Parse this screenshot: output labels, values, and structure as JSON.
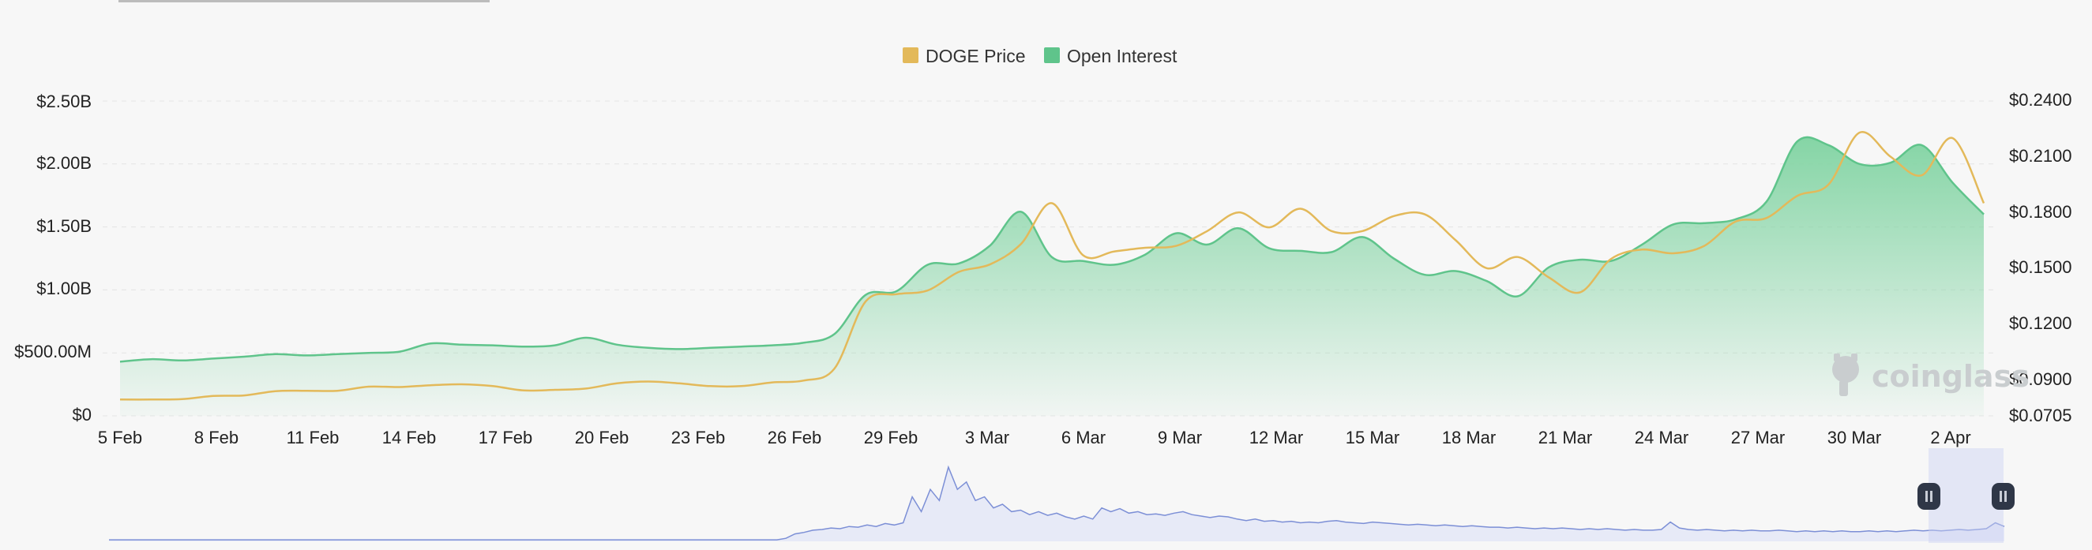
{
  "chart_data": {
    "type": "area",
    "title": "",
    "legend_position": "top-center",
    "grid": true,
    "colors": {
      "price": "#e3b95a",
      "open_interest": "#5fc48b",
      "open_interest_fill_top": "#7fd3a1",
      "navigator_line": "#7c8fd6",
      "navigator_fill": "#e7eaf7",
      "grid": "#e4e4e4"
    },
    "x_tick_labels": [
      "5 Feb",
      "8 Feb",
      "11 Feb",
      "14 Feb",
      "17 Feb",
      "20 Feb",
      "23 Feb",
      "26 Feb",
      "29 Feb",
      "3 Mar",
      "6 Mar",
      "9 Mar",
      "12 Mar",
      "15 Mar",
      "18 Mar",
      "21 Mar",
      "24 Mar",
      "27 Mar",
      "30 Mar",
      "2 Apr"
    ],
    "y_left": {
      "ticks": [
        0,
        500000000,
        1000000000,
        1500000000,
        2000000000,
        2500000000
      ],
      "tick_labels": [
        "$0",
        "$500.00M",
        "$1.00B",
        "$1.50B",
        "$2.00B",
        "$2.50B"
      ],
      "range": [
        0,
        2500000000
      ]
    },
    "y_right": {
      "ticks": [
        0.0705,
        0.09,
        0.12,
        0.15,
        0.18,
        0.21,
        0.24
      ],
      "tick_labels": [
        "$0.0705",
        "$0.0900",
        "$0.1200",
        "$0.1500",
        "$0.1800",
        "$0.2100",
        "$0.2400"
      ],
      "range": [
        0.0705,
        0.24
      ]
    },
    "x_day_range": [
      0,
      60
    ],
    "series": [
      {
        "name": "DOGE Price",
        "axis": "right",
        "x_days": [
          0,
          1,
          2,
          3,
          4,
          5,
          6,
          7,
          8,
          9,
          10,
          11,
          12,
          13,
          14,
          15,
          16,
          17,
          18,
          19,
          20,
          21,
          22,
          23,
          24,
          25,
          26,
          27,
          28,
          29,
          30,
          31,
          32,
          33,
          34,
          35,
          36,
          37,
          38,
          39,
          40,
          41,
          42,
          43,
          44,
          45,
          46,
          47,
          48,
          49,
          50,
          51,
          52,
          53,
          54,
          55,
          56,
          57,
          58,
          59,
          60
        ],
        "values": [
          0.0793,
          0.0793,
          0.0795,
          0.0812,
          0.0815,
          0.0838,
          0.084,
          0.084,
          0.0862,
          0.086,
          0.087,
          0.0875,
          0.0865,
          0.0842,
          0.0845,
          0.0852,
          0.088,
          0.089,
          0.088,
          0.0865,
          0.0865,
          0.0885,
          0.0895,
          0.096,
          0.132,
          0.136,
          0.138,
          0.148,
          0.152,
          0.163,
          0.185,
          0.157,
          0.159,
          0.161,
          0.162,
          0.17,
          0.18,
          0.172,
          0.182,
          0.17,
          0.17,
          0.178,
          0.179,
          0.165,
          0.15,
          0.156,
          0.145,
          0.137,
          0.155,
          0.16,
          0.158,
          0.162,
          0.175,
          0.177,
          0.189,
          0.195,
          0.223,
          0.21,
          0.2,
          0.22,
          0.185
        ]
      },
      {
        "name": "Open Interest",
        "axis": "left",
        "x_days": [
          0,
          1,
          2,
          3,
          4,
          5,
          6,
          7,
          8,
          9,
          10,
          11,
          12,
          13,
          14,
          15,
          16,
          17,
          18,
          19,
          20,
          21,
          22,
          23,
          24,
          25,
          26,
          27,
          28,
          29,
          30,
          31,
          32,
          33,
          34,
          35,
          36,
          37,
          38,
          39,
          40,
          41,
          42,
          43,
          44,
          45,
          46,
          47,
          48,
          49,
          50,
          51,
          52,
          53,
          54,
          55,
          56,
          57,
          58,
          59,
          60
        ],
        "values": [
          430000000,
          450000000,
          440000000,
          455000000,
          470000000,
          490000000,
          480000000,
          490000000,
          500000000,
          510000000,
          575000000,
          565000000,
          560000000,
          550000000,
          560000000,
          620000000,
          565000000,
          540000000,
          530000000,
          540000000,
          550000000,
          560000000,
          580000000,
          650000000,
          960000000,
          990000000,
          1200000000,
          1210000000,
          1350000000,
          1620000000,
          1260000000,
          1230000000,
          1200000000,
          1280000000,
          1450000000,
          1360000000,
          1490000000,
          1330000000,
          1310000000,
          1300000000,
          1420000000,
          1250000000,
          1120000000,
          1150000000,
          1070000000,
          950000000,
          1180000000,
          1240000000,
          1230000000,
          1360000000,
          1520000000,
          1530000000,
          1560000000,
          1700000000,
          2180000000,
          2150000000,
          2000000000,
          2010000000,
          2150000000,
          1850000000,
          1600000000
        ]
      }
    ],
    "navigator": {
      "values": [
        0.02,
        0.02,
        0.02,
        0.02,
        0.02,
        0.02,
        0.02,
        0.02,
        0.02,
        0.02,
        0.02,
        0.02,
        0.02,
        0.02,
        0.02,
        0.02,
        0.02,
        0.02,
        0.02,
        0.02,
        0.02,
        0.02,
        0.02,
        0.02,
        0.02,
        0.02,
        0.02,
        0.02,
        0.02,
        0.02,
        0.02,
        0.02,
        0.02,
        0.02,
        0.02,
        0.02,
        0.02,
        0.02,
        0.02,
        0.02,
        0.02,
        0.02,
        0.02,
        0.02,
        0.02,
        0.02,
        0.02,
        0.02,
        0.02,
        0.02,
        0.02,
        0.02,
        0.02,
        0.02,
        0.02,
        0.02,
        0.02,
        0.02,
        0.02,
        0.02,
        0.02,
        0.02,
        0.02,
        0.02,
        0.02,
        0.02,
        0.02,
        0.02,
        0.02,
        0.02,
        0.02,
        0.02,
        0.02,
        0.02,
        0.02,
        0.04,
        0.1,
        0.12,
        0.15,
        0.16,
        0.18,
        0.17,
        0.2,
        0.19,
        0.22,
        0.2,
        0.24,
        0.22,
        0.25,
        0.6,
        0.4,
        0.7,
        0.55,
        1.0,
        0.7,
        0.8,
        0.55,
        0.6,
        0.45,
        0.5,
        0.4,
        0.42,
        0.36,
        0.4,
        0.35,
        0.38,
        0.33,
        0.3,
        0.34,
        0.3,
        0.45,
        0.4,
        0.44,
        0.38,
        0.4,
        0.36,
        0.37,
        0.35,
        0.38,
        0.4,
        0.36,
        0.34,
        0.32,
        0.34,
        0.33,
        0.3,
        0.28,
        0.3,
        0.27,
        0.28,
        0.26,
        0.27,
        0.25,
        0.26,
        0.25,
        0.27,
        0.28,
        0.26,
        0.25,
        0.24,
        0.26,
        0.25,
        0.24,
        0.23,
        0.22,
        0.23,
        0.22,
        0.21,
        0.22,
        0.21,
        0.2,
        0.21,
        0.2,
        0.19,
        0.19,
        0.18,
        0.19,
        0.18,
        0.17,
        0.18,
        0.17,
        0.18,
        0.17,
        0.16,
        0.17,
        0.16,
        0.17,
        0.16,
        0.15,
        0.16,
        0.15,
        0.15,
        0.16,
        0.26,
        0.18,
        0.16,
        0.15,
        0.16,
        0.15,
        0.14,
        0.15,
        0.14,
        0.15,
        0.14,
        0.14,
        0.15,
        0.14,
        0.13,
        0.14,
        0.13,
        0.14,
        0.13,
        0.14,
        0.13,
        0.13,
        0.14,
        0.13,
        0.14,
        0.13,
        0.14,
        0.15,
        0.14,
        0.15,
        0.14,
        0.15,
        0.16,
        0.15,
        0.16,
        0.17,
        0.25,
        0.2
      ]
    }
  },
  "legend": {
    "items": [
      {
        "label": "DOGE Price",
        "color": "#e3b95a"
      },
      {
        "label": "Open Interest",
        "color": "#5fc48b"
      }
    ]
  },
  "watermark": {
    "text": "coinglass",
    "icon": "coinglass-logo-icon"
  },
  "navigator_handles": {
    "left_icon": "pause-handle-icon",
    "right_icon": "pause-handle-icon"
  }
}
